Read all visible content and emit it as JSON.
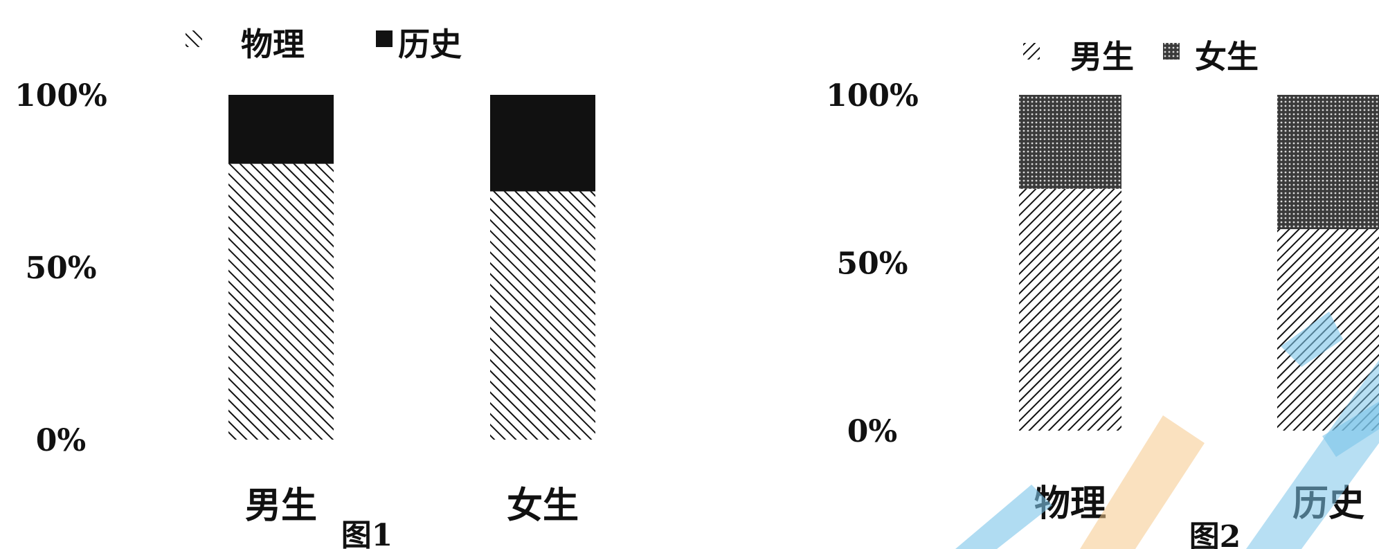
{
  "chart_data": [
    {
      "type": "bar",
      "stacked": true,
      "normalized": true,
      "categories": [
        "男生",
        "女生"
      ],
      "series": [
        {
          "name": "物理",
          "values": [
            80,
            72
          ],
          "pattern": "hatch-backslash"
        },
        {
          "name": "历史",
          "values": [
            20,
            28
          ],
          "pattern": "solid"
        }
      ],
      "ylim": [
        0,
        100
      ],
      "yticks": [
        "0%",
        "50%",
        "100%"
      ],
      "legend_position": "top",
      "caption": "图1"
    },
    {
      "type": "bar",
      "stacked": true,
      "normalized": true,
      "categories": [
        "物理",
        "历史"
      ],
      "series": [
        {
          "name": "男生",
          "values": [
            72,
            60
          ],
          "pattern": "hatch-slash"
        },
        {
          "name": "女生",
          "values": [
            28,
            40
          ],
          "pattern": "dots"
        }
      ],
      "ylim": [
        0,
        100
      ],
      "yticks": [
        "0%",
        "50%",
        "100%"
      ],
      "legend_position": "top",
      "caption": "图2"
    }
  ],
  "colors": {
    "ink": "#111111",
    "watermark_blue": "#7cc4ea",
    "watermark_orange": "#f6c88a"
  }
}
